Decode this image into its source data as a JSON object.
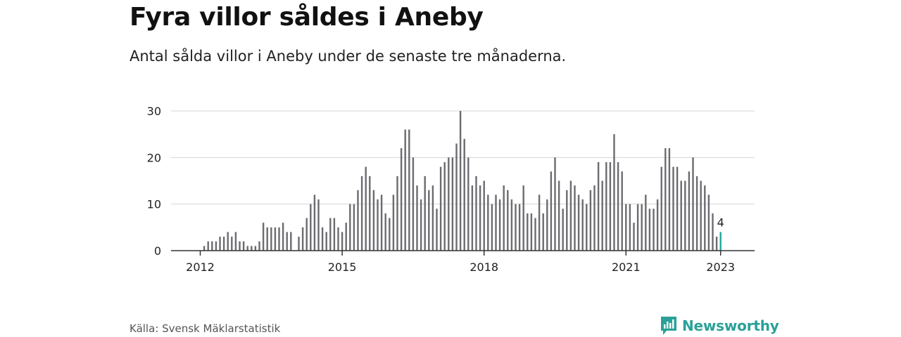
{
  "title": "Fyra villor såldes i Aneby",
  "subtitle": "Antal sålda villor i Aneby under de senaste tre månaderna.",
  "source": "Källa: Svensk Mäklarstatistik",
  "brand": "Newsworthy",
  "colors": {
    "bar": "#6b6b70",
    "highlight": "#1fa5a0",
    "grid": "#d4d4d4",
    "axis": "#333333"
  },
  "chart_data": {
    "type": "bar",
    "title": "Fyra villor såldes i Aneby",
    "xlabel": "",
    "ylabel": "",
    "ylim": [
      0,
      30
    ],
    "yticks": [
      0,
      10,
      20,
      30
    ],
    "xticks": [
      {
        "label": "2012",
        "index": 0
      },
      {
        "label": "2015",
        "index": 36
      },
      {
        "label": "2018",
        "index": 72
      },
      {
        "label": "2021",
        "index": 108
      },
      {
        "label": "2023",
        "index": 132
      }
    ],
    "first_period": "2012-01",
    "values": [
      0,
      1,
      2,
      2,
      2,
      3,
      3,
      4,
      3,
      4,
      2,
      2,
      1,
      1,
      1,
      2,
      6,
      5,
      5,
      5,
      5,
      6,
      4,
      4,
      0,
      3,
      5,
      7,
      10,
      12,
      11,
      5,
      4,
      7,
      7,
      5,
      4,
      6,
      10,
      10,
      13,
      16,
      18,
      16,
      13,
      11,
      12,
      8,
      7,
      12,
      16,
      22,
      26,
      26,
      20,
      14,
      11,
      16,
      13,
      14,
      9,
      18,
      19,
      20,
      20,
      23,
      30,
      24,
      20,
      14,
      16,
      14,
      15,
      12,
      10,
      12,
      11,
      14,
      13,
      11,
      10,
      10,
      14,
      8,
      8,
      7,
      12,
      8,
      11,
      17,
      20,
      15,
      9,
      13,
      15,
      14,
      12,
      11,
      10,
      13,
      14,
      19,
      15,
      19,
      19,
      25,
      19,
      17,
      10,
      10,
      6,
      10,
      10,
      12,
      9,
      9,
      11,
      18,
      22,
      22,
      18,
      18,
      15,
      15,
      17,
      20,
      16,
      15,
      14,
      12,
      8,
      3,
      4
    ],
    "highlight_index": 132,
    "highlight_label": "4"
  }
}
